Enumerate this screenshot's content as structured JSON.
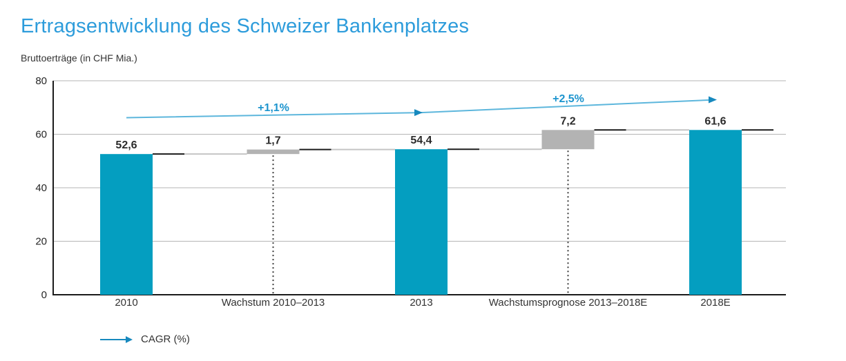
{
  "title": "Ertragsentwicklung des Schweizer Bankenplatzes",
  "subtitle": "Bruttoerträge (in CHF Mia.)",
  "legend": {
    "label": "CAGR (%)"
  },
  "colors": {
    "title_blue": "#2D9CDB",
    "bar_blue": "#049EC0",
    "bar_gray": "#B3B3B3",
    "grid_gray": "#B5B5B5",
    "axis_dark": "#1A1A1A",
    "connector_black": "#1A1A1A",
    "connector_gray": "#C4C4C4",
    "drop_line_dark": "#3A3A3A",
    "cagr_line_blue": "#5CB6DC",
    "cagr_arrow_blue": "#1789BE",
    "cagr_label_blue": "#1C94CE",
    "value_text": "#2B2B2B",
    "tick_text": "#262626",
    "category_text": "#333333"
  },
  "chart_data": {
    "type": "bar",
    "variant": "waterfall",
    "title": "Ertragsentwicklung des Schweizer Bankenplatzes",
    "ylabel": "Bruttoerträge (in CHF Mia.)",
    "ylim": [
      0,
      80
    ],
    "yticks": [
      0,
      20,
      40,
      60,
      80
    ],
    "grid": true,
    "columns": [
      {
        "category": "2010",
        "value": 52.6,
        "display": "52,6",
        "role": "total"
      },
      {
        "category": "Wachstum 2010–2013",
        "value": 1.7,
        "display": "1,7",
        "role": "delta",
        "base": 52.6
      },
      {
        "category": "2013",
        "value": 54.4,
        "display": "54,4",
        "role": "total"
      },
      {
        "category": "Wachstumsprognose 2013–2018E",
        "value": 7.2,
        "display": "7,2",
        "role": "delta",
        "base": 54.4
      },
      {
        "category": "2018E",
        "value": 61.6,
        "display": "61,6",
        "role": "total"
      }
    ],
    "cagr_annotations": [
      {
        "label": "+1,1%",
        "from_category": "2010",
        "to_category": "2013"
      },
      {
        "label": "+2,5%",
        "from_category": "2013",
        "to_category": "2018E"
      }
    ],
    "legend_label": "CAGR (%)",
    "legend_position": "bottom-left"
  }
}
